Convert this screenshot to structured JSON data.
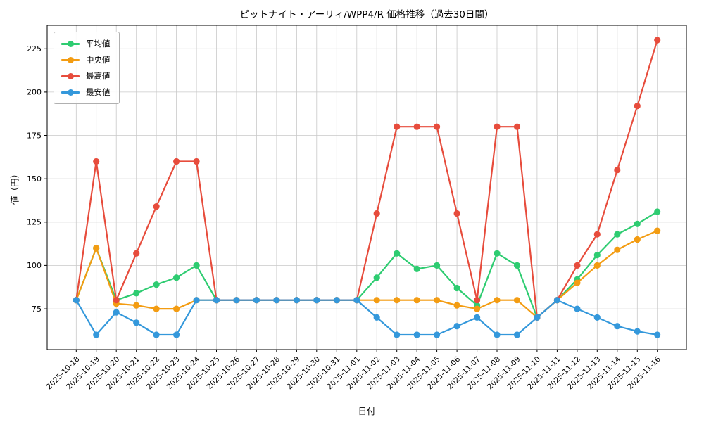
{
  "chart_data": {
    "type": "line",
    "title": "ピットナイト・アーリィ/WPP4/R 価格推移（過去30日間）",
    "xlabel": "日付",
    "ylabel": "値（円）",
    "x": [
      "2025-10-18",
      "2025-10-19",
      "2025-10-20",
      "2025-10-21",
      "2025-10-22",
      "2025-10-23",
      "2025-10-24",
      "2025-10-25",
      "2025-10-26",
      "2025-10-27",
      "2025-10-28",
      "2025-10-29",
      "2025-10-30",
      "2025-10-31",
      "2025-11-01",
      "2025-11-02",
      "2025-11-03",
      "2025-11-04",
      "2025-11-05",
      "2025-11-06",
      "2025-11-07",
      "2025-11-08",
      "2025-11-09",
      "2025-11-10",
      "2025-11-11",
      "2025-11-12",
      "2025-11-13",
      "2025-11-14",
      "2025-11-15",
      "2025-11-16"
    ],
    "series": [
      {
        "name": "平均値",
        "color": "#2ecc71",
        "values": [
          80,
          110,
          80,
          84,
          89,
          93,
          100,
          80,
          80,
          80,
          80,
          80,
          80,
          80,
          80,
          93,
          107,
          98,
          100,
          87,
          77,
          107,
          100,
          70,
          80,
          92,
          106,
          118,
          124,
          131
        ]
      },
      {
        "name": "中央値",
        "color": "#f39c12",
        "values": [
          80,
          110,
          78,
          77,
          75,
          75,
          80,
          80,
          80,
          80,
          80,
          80,
          80,
          80,
          80,
          80,
          80,
          80,
          80,
          77,
          75,
          80,
          80,
          70,
          80,
          90,
          100,
          109,
          115,
          120
        ]
      },
      {
        "name": "最高値",
        "color": "#e74c3c",
        "values": [
          80,
          160,
          80,
          107,
          134,
          160,
          160,
          80,
          80,
          80,
          80,
          80,
          80,
          80,
          80,
          130,
          180,
          180,
          180,
          130,
          80,
          180,
          180,
          70,
          80,
          100,
          118,
          155,
          192,
          230
        ]
      },
      {
        "name": "最安値",
        "color": "#3498db",
        "values": [
          80,
          60,
          73,
          67,
          60,
          60,
          80,
          80,
          80,
          80,
          80,
          80,
          80,
          80,
          80,
          70,
          60,
          60,
          60,
          65,
          70,
          60,
          60,
          70,
          80,
          75,
          70,
          65,
          62,
          60
        ]
      }
    ],
    "yticks": [
      75,
      100,
      125,
      150,
      175,
      200,
      225
    ],
    "ylim": [
      51.5,
      238.5
    ],
    "grid": true,
    "grid_color": "#c9c9c9",
    "axis_color": "#000000",
    "legend_position": "upper-left",
    "marker": "circle"
  }
}
